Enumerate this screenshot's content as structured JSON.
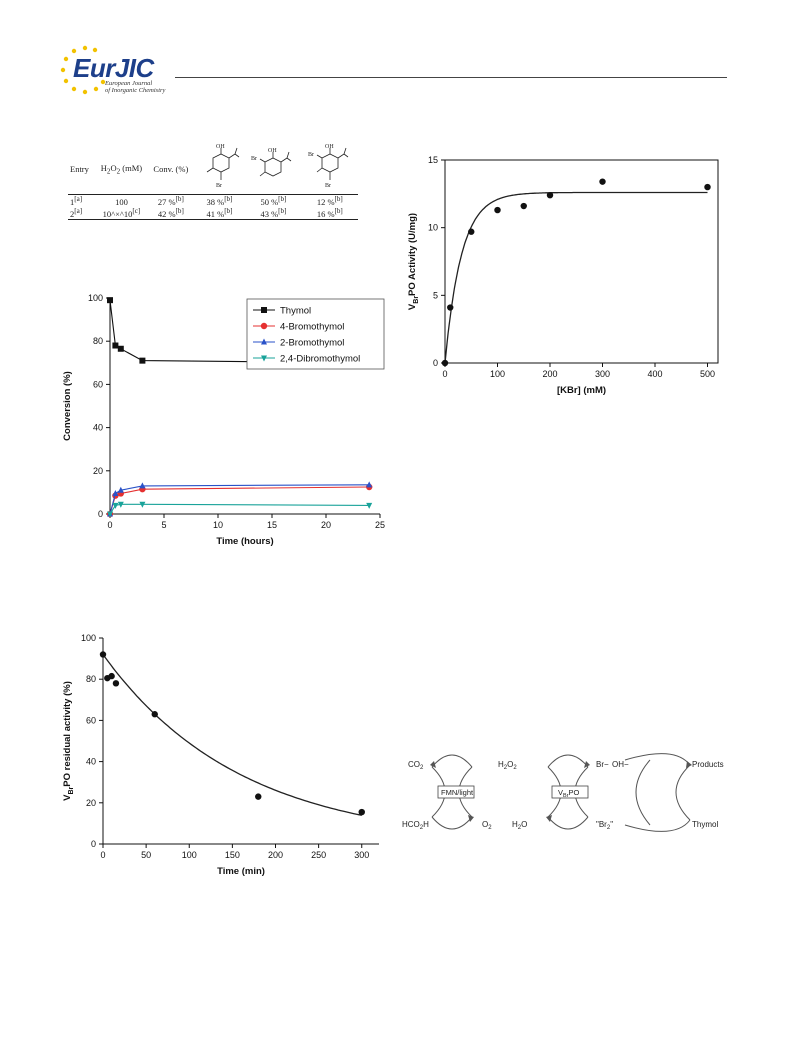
{
  "header": {
    "logo_main": "Eur",
    "logo_accent": "JIC",
    "logo_sub1": "European Journal",
    "logo_sub2": "of Inorganic Chemistry"
  },
  "table": {
    "columns": [
      "Entry",
      "H2O2 (mM)",
      "Conv. (%)"
    ],
    "rows": [
      {
        "entry": "1",
        "entry_note": "[a]",
        "h2o2": "100",
        "h2o2_note": "",
        "conv": "27 %",
        "p1": "38 %",
        "p2": "50 %",
        "p3": "12 %",
        "note": "[b]"
      },
      {
        "entry": "2",
        "entry_note": "[a]",
        "h2o2": "10^×^10",
        "h2o2_note": "[c]",
        "conv": "42 %",
        "p1": "41 %",
        "p2": "43 %",
        "p3": "16 %",
        "note": "[b]"
      }
    ]
  },
  "chart_data": [
    {
      "type": "scatter",
      "xlabel": "[KBr] (mM)",
      "ylabel": "VBrPO Activity (U/mg)",
      "xlim": [
        0,
        520
      ],
      "ylim": [
        0,
        15
      ],
      "xticks": [
        0,
        100,
        200,
        300,
        400,
        500
      ],
      "yticks": [
        0,
        5,
        10,
        15
      ],
      "points": {
        "x": [
          0,
          10,
          50,
          100,
          150,
          200,
          300,
          500
        ],
        "y": [
          0,
          4.1,
          9.7,
          11.3,
          11.6,
          12.4,
          13.4,
          13.0
        ]
      },
      "fit": {
        "vmax": 12.6,
        "k": 0.032,
        "x_end": 500
      }
    },
    {
      "type": "line",
      "xlabel": "Time (hours)",
      "ylabel": "Conversion (%)",
      "xlim": [
        0,
        25
      ],
      "ylim": [
        0,
        100
      ],
      "xticks": [
        0,
        5,
        10,
        15,
        20,
        25
      ],
      "yticks": [
        0,
        20,
        40,
        60,
        80,
        100
      ],
      "legend_position": "top-right",
      "series": [
        {
          "name": "Thymol",
          "color": "#111111",
          "marker": "square",
          "x": [
            0,
            0.5,
            1,
            3,
            24
          ],
          "y": [
            99,
            78,
            76.5,
            71,
            70
          ]
        },
        {
          "name": "4-Bromothymol",
          "color": "#e53030",
          "marker": "circle",
          "x": [
            0,
            0.5,
            1,
            3,
            24
          ],
          "y": [
            0,
            8.5,
            9.5,
            11.5,
            12.5
          ]
        },
        {
          "name": "2-Bromothymol",
          "color": "#2a52c8",
          "marker": "triangle-up",
          "x": [
            0,
            0.5,
            1,
            3,
            24
          ],
          "y": [
            0,
            9.5,
            11,
            13,
            13.5
          ]
        },
        {
          "name": "2,4-Dibromothymol",
          "color": "#1aa39a",
          "marker": "triangle-down",
          "x": [
            0,
            0.5,
            1,
            3,
            24
          ],
          "y": [
            0,
            4,
            4.5,
            4.5,
            4
          ]
        }
      ]
    },
    {
      "type": "scatter",
      "xlabel": "Time (min)",
      "ylabel": "VBrPO residual activity (%)",
      "xlim": [
        0,
        320
      ],
      "ylim": [
        0,
        100
      ],
      "xticks": [
        0,
        50,
        100,
        150,
        200,
        250,
        300
      ],
      "yticks": [
        0,
        20,
        40,
        60,
        80,
        100
      ],
      "points": {
        "x": [
          0,
          5,
          10,
          15,
          60,
          180,
          300
        ],
        "y": [
          92,
          80.5,
          81.5,
          78,
          63,
          23,
          15.5
        ]
      },
      "fit": {
        "a": 92,
        "k": 0.0063,
        "x_end": 300
      }
    }
  ],
  "scheme": {
    "co2": "CO2",
    "hco2h": "HCO2H",
    "fmn_box": "FMN/light",
    "h2o2": "H2O2",
    "o2": "O2",
    "h2o": "H2O",
    "vbrpo_box": "VBrPO",
    "br_minus": "Br−",
    "br2": "\"Br2\"",
    "oh_minus": "OH−",
    "products": "Products",
    "thymol": "Thymol"
  }
}
